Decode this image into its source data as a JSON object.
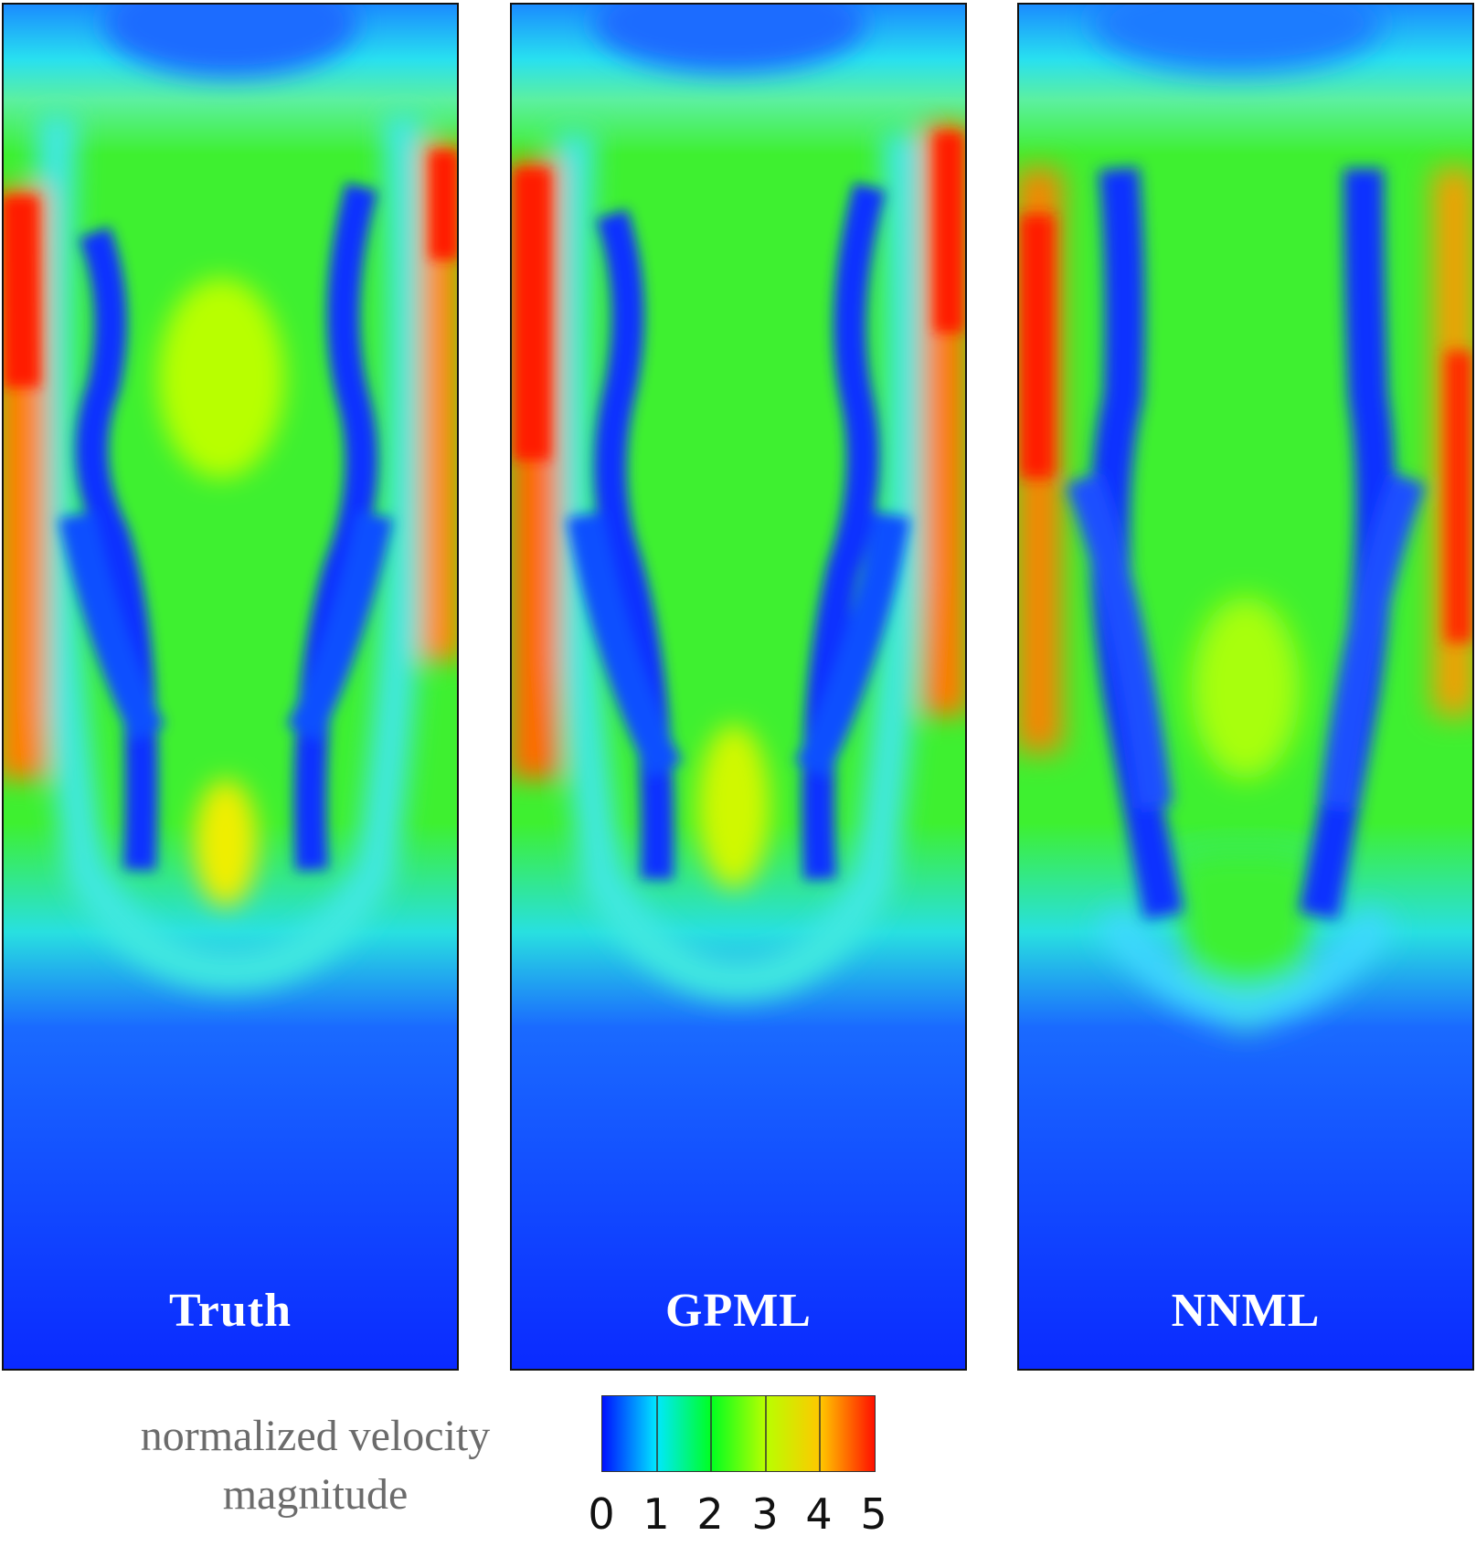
{
  "panels": [
    {
      "label": "Truth"
    },
    {
      "label": "GPML"
    },
    {
      "label": "NNML"
    }
  ],
  "colorbar": {
    "title_line1": "normalized velocity",
    "title_line2": "magnitude",
    "ticks": [
      "0",
      "1",
      "2",
      "3",
      "4",
      "5"
    ],
    "colors": [
      "#0010ff",
      "#00e8ff",
      "#00ff20",
      "#e8ff00",
      "#ff1000"
    ]
  }
}
